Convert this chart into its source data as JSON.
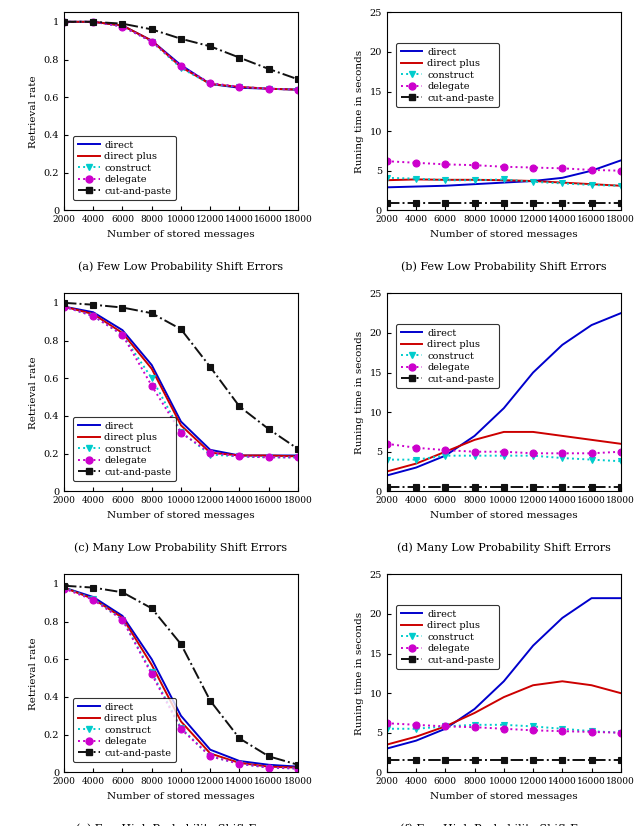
{
  "x": [
    2000,
    4000,
    6000,
    8000,
    10000,
    12000,
    14000,
    16000,
    18000
  ],
  "plot_a_retrieval": {
    "direct": [
      1.0,
      1.0,
      0.98,
      0.9,
      0.77,
      0.67,
      0.65,
      0.645,
      0.64
    ],
    "direct_plus": [
      1.0,
      1.0,
      0.98,
      0.9,
      0.76,
      0.67,
      0.655,
      0.645,
      0.64
    ],
    "construct": [
      1.0,
      1.0,
      0.975,
      0.895,
      0.755,
      0.67,
      0.655,
      0.645,
      0.64
    ],
    "delegate": [
      1.0,
      1.0,
      0.975,
      0.895,
      0.765,
      0.675,
      0.655,
      0.645,
      0.64
    ],
    "cut_and_paste": [
      1.0,
      1.0,
      0.99,
      0.96,
      0.91,
      0.87,
      0.81,
      0.75,
      0.695
    ]
  },
  "plot_b_time": {
    "direct": [
      2.9,
      3.0,
      3.1,
      3.3,
      3.5,
      3.7,
      4.1,
      5.0,
      6.3
    ],
    "direct_plus": [
      3.8,
      3.9,
      3.85,
      3.85,
      3.8,
      3.7,
      3.5,
      3.3,
      3.1
    ],
    "construct": [
      4.1,
      4.0,
      3.8,
      3.8,
      3.9,
      3.6,
      3.4,
      3.2,
      3.1
    ],
    "delegate": [
      6.2,
      6.0,
      5.8,
      5.7,
      5.5,
      5.4,
      5.3,
      5.1,
      5.0
    ],
    "cut_and_paste": [
      0.9,
      0.9,
      0.9,
      0.9,
      0.9,
      0.9,
      0.9,
      0.9,
      0.9
    ]
  },
  "plot_c_retrieval": {
    "direct": [
      0.98,
      0.95,
      0.855,
      0.67,
      0.37,
      0.22,
      0.19,
      0.19,
      0.19
    ],
    "direct_plus": [
      0.98,
      0.94,
      0.84,
      0.65,
      0.35,
      0.205,
      0.19,
      0.19,
      0.185
    ],
    "construct": [
      0.98,
      0.93,
      0.83,
      0.6,
      0.315,
      0.195,
      0.185,
      0.18,
      0.18
    ],
    "delegate": [
      0.98,
      0.93,
      0.83,
      0.56,
      0.31,
      0.205,
      0.185,
      0.18,
      0.18
    ],
    "cut_and_paste": [
      1.0,
      0.99,
      0.975,
      0.945,
      0.86,
      0.66,
      0.45,
      0.33,
      0.225
    ]
  },
  "plot_d_time": {
    "direct": [
      2.0,
      3.0,
      4.5,
      7.0,
      10.5,
      15.0,
      18.5,
      21.0,
      22.5
    ],
    "direct_plus": [
      2.5,
      3.5,
      5.0,
      6.5,
      7.5,
      7.5,
      7.0,
      6.5,
      6.0
    ],
    "construct": [
      4.0,
      4.0,
      4.5,
      4.5,
      4.5,
      4.5,
      4.2,
      4.0,
      3.8
    ],
    "delegate": [
      6.0,
      5.5,
      5.2,
      5.0,
      5.0,
      4.8,
      4.8,
      4.8,
      5.0
    ],
    "cut_and_paste": [
      0.5,
      0.5,
      0.5,
      0.5,
      0.5,
      0.5,
      0.5,
      0.5,
      0.5
    ]
  },
  "plot_e_retrieval": {
    "direct": [
      0.98,
      0.93,
      0.83,
      0.6,
      0.3,
      0.12,
      0.06,
      0.04,
      0.03
    ],
    "direct_plus": [
      0.98,
      0.92,
      0.82,
      0.57,
      0.27,
      0.1,
      0.05,
      0.03,
      0.025
    ],
    "construct": [
      0.98,
      0.92,
      0.81,
      0.53,
      0.235,
      0.085,
      0.045,
      0.025,
      0.02
    ],
    "delegate": [
      0.975,
      0.915,
      0.81,
      0.52,
      0.23,
      0.085,
      0.045,
      0.025,
      0.02
    ],
    "cut_and_paste": [
      0.99,
      0.98,
      0.955,
      0.87,
      0.68,
      0.38,
      0.18,
      0.085,
      0.04
    ]
  },
  "plot_f_time": {
    "direct": [
      3.0,
      4.0,
      5.5,
      8.0,
      11.5,
      16.0,
      19.5,
      22.0,
      22.0
    ],
    "direct_plus": [
      3.5,
      4.5,
      5.8,
      7.5,
      9.5,
      11.0,
      11.5,
      11.0,
      10.0
    ],
    "construct": [
      5.5,
      5.5,
      5.8,
      6.0,
      6.0,
      5.8,
      5.5,
      5.2,
      5.0
    ],
    "delegate": [
      6.2,
      6.0,
      5.8,
      5.7,
      5.5,
      5.3,
      5.2,
      5.1,
      5.0
    ],
    "cut_and_paste": [
      1.5,
      1.5,
      1.5,
      1.5,
      1.5,
      1.5,
      1.5,
      1.5,
      1.5
    ]
  },
  "captions": [
    "(a) Few Low Probability Shift Errors",
    "(b) Few Low Probability Shift Errors",
    "(c) Many Low Probability Shift Errors",
    "(d) Many Low Probability Shift Errors",
    "(e) Few High Probability Shift Errors",
    "(f) Few High Probability Shift Errors"
  ],
  "colors": {
    "direct": "#0000cc",
    "direct_plus": "#cc0000",
    "construct": "#00cccc",
    "delegate": "#cc00cc",
    "cut_and_paste": "#111111"
  }
}
